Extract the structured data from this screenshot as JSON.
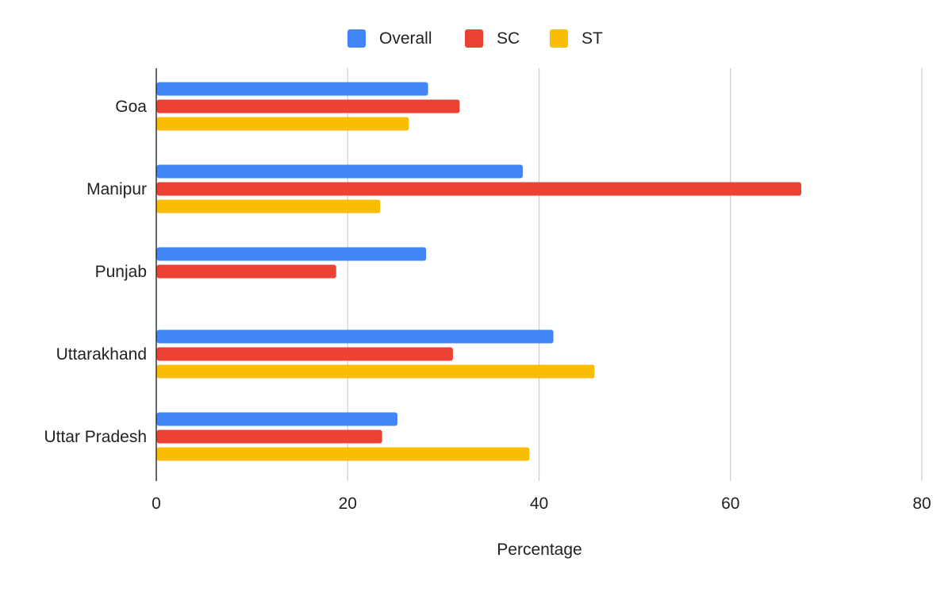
{
  "chart_data": {
    "type": "bar",
    "orientation": "horizontal",
    "categories": [
      "Goa",
      "Manipur",
      "Punjab",
      "Uttarakhand",
      "Uttar Pradesh"
    ],
    "series": [
      {
        "name": "Overall",
        "color": "#4285f4",
        "values": [
          28.4,
          38.3,
          28.2,
          41.5,
          25.2
        ]
      },
      {
        "name": "SC",
        "color": "#ea4335",
        "values": [
          31.7,
          67.4,
          18.8,
          31.0,
          23.6
        ]
      },
      {
        "name": "ST",
        "color": "#fbbc04",
        "values": [
          26.4,
          23.4,
          null,
          45.8,
          39.0
        ]
      }
    ],
    "title": "",
    "xlabel": "Percentage",
    "ylabel": "",
    "xlim": [
      0,
      80
    ],
    "xticks": [
      0,
      20,
      40,
      60,
      80
    ],
    "grid": true,
    "legend_position": "top"
  }
}
